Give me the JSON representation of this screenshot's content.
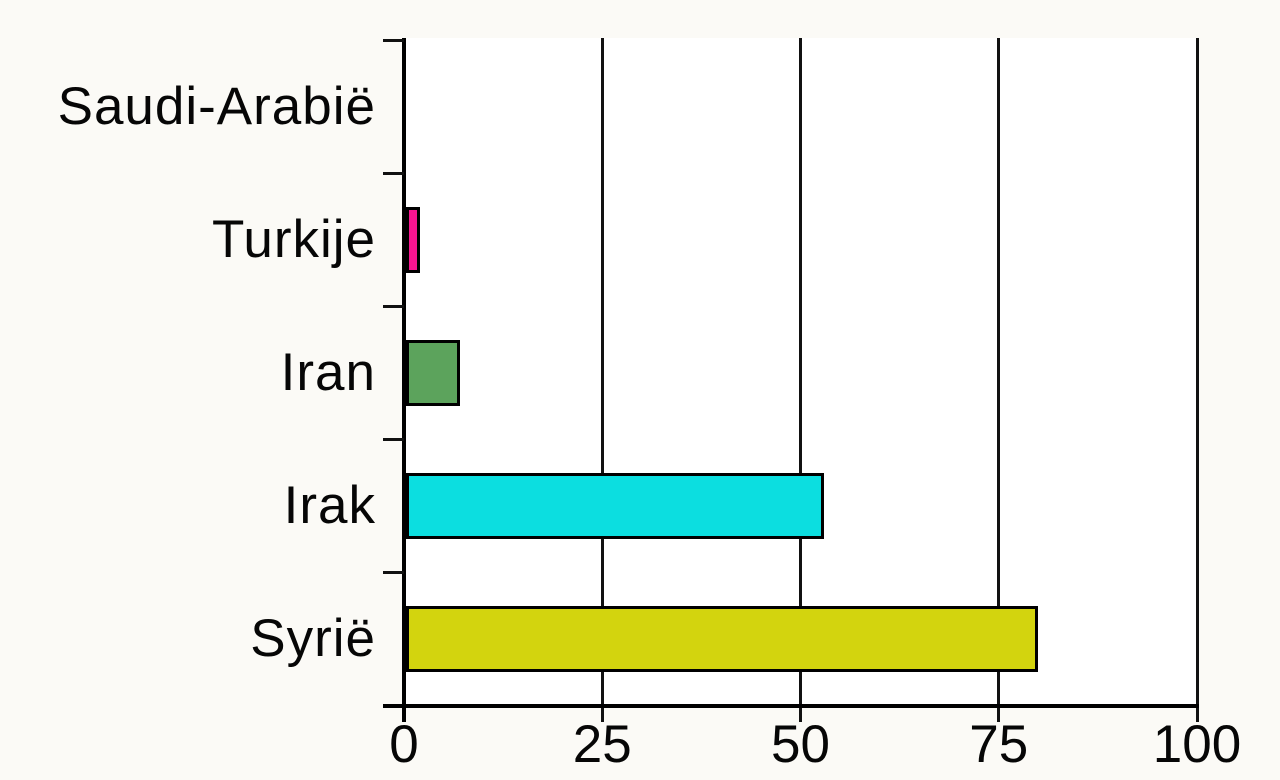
{
  "chart_data": {
    "type": "bar",
    "orientation": "horizontal",
    "title": "",
    "xlabel": "",
    "ylabel": "",
    "categories": [
      "Saudi-Arabië",
      "Turkije",
      "Iran",
      "Irak",
      "Syrië"
    ],
    "values": [
      0,
      2,
      7,
      53,
      80
    ],
    "bar_colors": [
      null,
      "#fa1490",
      "#5ca35c",
      "#0cdee0",
      "#d3d40e"
    ],
    "xlim": [
      0,
      100
    ],
    "x_ticks": [
      0,
      25,
      50,
      75,
      100
    ],
    "x_tick_labels": [
      "0",
      "25",
      "50",
      "75",
      "100"
    ],
    "grid": "vertical",
    "legend": "none",
    "axis_color": "#000000",
    "bar_border_color": "#000000",
    "plot_background": "#ffffff",
    "figure_background": "#fbfaf6"
  }
}
